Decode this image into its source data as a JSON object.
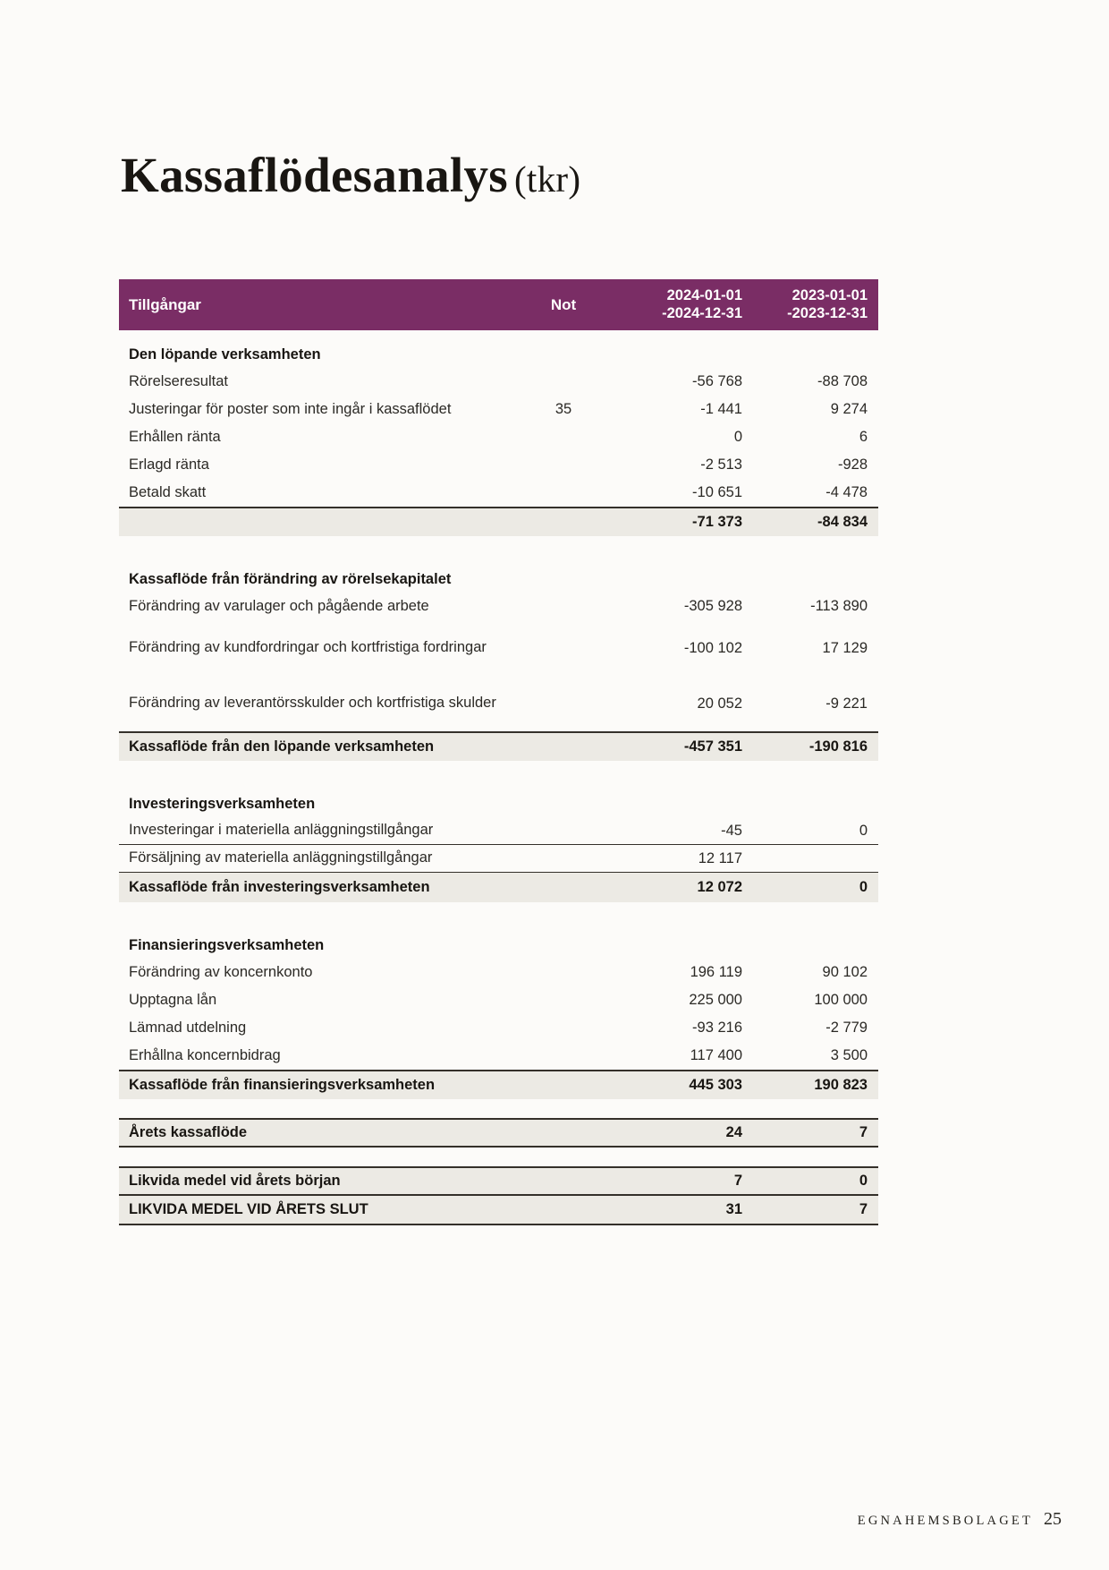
{
  "page": {
    "title": "Kassaflödesanalys",
    "title_suffix": "(tkr)",
    "footer": {
      "company": "EGNAHEMSBOLAGET",
      "page_number": "25"
    }
  },
  "colors": {
    "page_bg": "#fcfbf9",
    "header_bg": "#7a2d65",
    "row_shade": "#eceae4",
    "rule_color": "#34302a"
  },
  "table": {
    "header": {
      "label": "Tillgångar",
      "note": "Not",
      "period_2024_line1": "2024-01-01",
      "period_2024_line2": "-2024-12-31",
      "period_2023_line1": "2023-01-01",
      "period_2023_line2": "-2023-12-31"
    },
    "rows": [
      {
        "kind": "section",
        "label": "Den löpande verksamheten"
      },
      {
        "kind": "item",
        "label": "Rörelseresultat",
        "note": "",
        "y2024": "-56 768",
        "y2023": "-88 708"
      },
      {
        "kind": "item",
        "label": "Justeringar för poster som inte ingår i kassaflödet",
        "note": "35",
        "y2024": "-1 441",
        "y2023": "9 274"
      },
      {
        "kind": "item",
        "label": "Erhållen ränta",
        "note": "",
        "y2024": "0",
        "y2023": "6"
      },
      {
        "kind": "item",
        "label": "Erlagd ränta",
        "note": "",
        "y2024": "-2 513",
        "y2023": "-928"
      },
      {
        "kind": "item",
        "label": "Betald skatt",
        "note": "",
        "y2024": "-10 651",
        "y2023": "-4 478"
      },
      {
        "kind": "total",
        "label": "",
        "note": "",
        "y2024": "-71 373",
        "y2023": "-84 834",
        "rule_top": true
      },
      {
        "kind": "gap"
      },
      {
        "kind": "section",
        "label": "Kassaflöde från förändring av rörelsekapitalet"
      },
      {
        "kind": "item",
        "label": "Förändring av varulager och pågående arbete",
        "note": "",
        "y2024": "-305 928",
        "y2023": "-113 890"
      },
      {
        "kind": "item",
        "label": "Förändring av kundfordringar och kortfristiga fordringar",
        "note": "",
        "y2024": "-100 102",
        "y2023": "17 129",
        "two_line": true
      },
      {
        "kind": "item",
        "label": "Förändring av leverantörsskulder och kortfristiga skulder",
        "note": "",
        "y2024": "20 052",
        "y2023": "-9 221",
        "two_line": true
      },
      {
        "kind": "total",
        "label": "Kassaflöde från den löpande verksamheten",
        "note": "",
        "y2024": "-457 351",
        "y2023": "-190 816",
        "rule_top": true
      },
      {
        "kind": "gap"
      },
      {
        "kind": "section",
        "label": "Investeringsverksamheten"
      },
      {
        "kind": "item",
        "label": "Investeringar i materiella anläggningstillgångar",
        "note": "",
        "y2024": "-45",
        "y2023": "0",
        "rule_bottom": true
      },
      {
        "kind": "item",
        "label": "Försäljning av materiella anläggningstillgångar",
        "note": "",
        "y2024": "12 117",
        "y2023": "",
        "rule_bottom": true
      },
      {
        "kind": "total",
        "label": "Kassaflöde från investeringsverksamheten",
        "note": "",
        "y2024": "12 072",
        "y2023": "0"
      },
      {
        "kind": "gap"
      },
      {
        "kind": "section",
        "label": "Finansieringsverksamheten"
      },
      {
        "kind": "item",
        "label": "Förändring av koncernkonto",
        "note": "",
        "y2024": "196 119",
        "y2023": "90 102"
      },
      {
        "kind": "item",
        "label": "Upptagna lån",
        "note": "",
        "y2024": "225 000",
        "y2023": "100 000"
      },
      {
        "kind": "item",
        "label": "Lämnad utdelning",
        "note": "",
        "y2024": "-93 216",
        "y2023": "-2 779"
      },
      {
        "kind": "item",
        "label": "Erhållna koncernbidrag",
        "note": "",
        "y2024": "117 400",
        "y2023": "3 500"
      },
      {
        "kind": "total",
        "label": "Kassaflöde från finansieringsverksamheten",
        "note": "",
        "y2024": "445 303",
        "y2023": "190 823",
        "rule_top": true
      },
      {
        "kind": "gap"
      },
      {
        "kind": "total",
        "label": "Årets kassaflöde",
        "note": "",
        "y2024": "24",
        "y2023": "7",
        "rule_top": true,
        "rule_bottom": true
      },
      {
        "kind": "gap"
      },
      {
        "kind": "total",
        "label": "Likvida medel vid årets början",
        "note": "",
        "y2024": "7",
        "y2023": "0",
        "rule_top": true,
        "rule_bottom": true
      },
      {
        "kind": "total",
        "label": "LIKVIDA MEDEL VID ÅRETS SLUT",
        "note": "",
        "y2024": "31",
        "y2023": "7",
        "rule_bottom": true
      }
    ]
  }
}
